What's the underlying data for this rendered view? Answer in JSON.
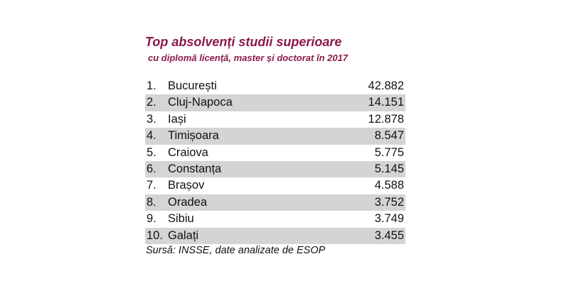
{
  "title": "Top absolvenți studii superioare",
  "subtitle": "cu diplomă licență, master și doctorat în 2017",
  "rows": [
    {
      "rank": "1.",
      "city": "București",
      "value": "42.882"
    },
    {
      "rank": "2.",
      "city": "Cluj-Napoca",
      "value": "14.151"
    },
    {
      "rank": "3.",
      "city": "Iași",
      "value": "12.878"
    },
    {
      "rank": "4.",
      "city": "Timișoara",
      "value": "8.547"
    },
    {
      "rank": "5.",
      "city": "Craiova",
      "value": "5.775"
    },
    {
      "rank": "6.",
      "city": "Constanța",
      "value": "5.145"
    },
    {
      "rank": "7.",
      "city": "Brașov",
      "value": "4.588"
    },
    {
      "rank": "8.",
      "city": "Oradea",
      "value": "3.752"
    },
    {
      "rank": "9.",
      "city": "Sibiu",
      "value": "3.749"
    },
    {
      "rank": "10.",
      "city": "Galați",
      "value": "3.455"
    }
  ],
  "source": "Sursă: INSSE, date analizate de ESOP",
  "colors": {
    "title": "#8b1a4a",
    "row_shade": "#d4d4d4"
  }
}
